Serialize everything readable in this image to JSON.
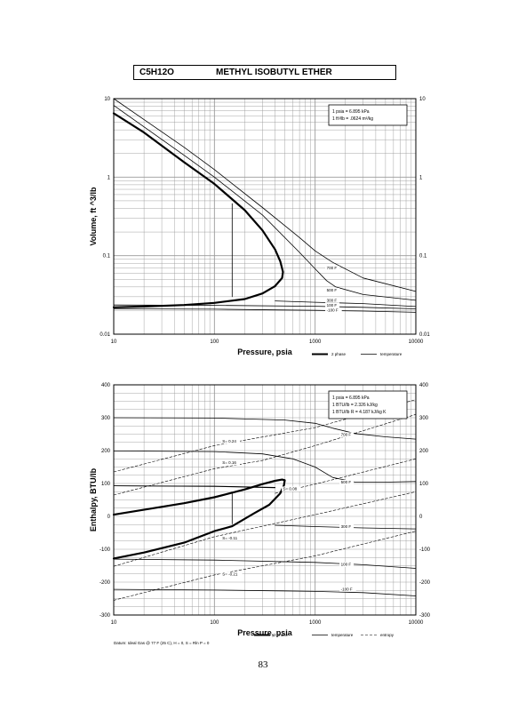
{
  "page": {
    "formula": "C5H12O",
    "compound": "METHYL ISOBUTYL ETHER",
    "page_number": "83"
  },
  "colors": {
    "ink": "#000000",
    "grid": "#9a9a9a"
  },
  "chart_data": [
    {
      "type": "line",
      "xscale": "log",
      "yscale": "log",
      "xlabel": "Pressure,  psia",
      "ylabel": "Volume, ft^3/lb",
      "xlim": [
        10,
        10000
      ],
      "ylim": [
        0.01,
        10
      ],
      "xticks": [
        "10",
        "100",
        "1000",
        "10000"
      ],
      "yticks": [
        "0.01",
        "0.1",
        "1",
        "10"
      ],
      "grid": true,
      "legend": {
        "position": "bottom-right",
        "entries": [
          "2 phase",
          "temperature"
        ]
      },
      "conversion_box": [
        "1 psia = 6.895 kPa",
        "1 ft^3/lb = .0624 m^3/kg"
      ],
      "curve_labels": [
        {
          "text": "700 F",
          "x": 1300,
          "y": 0.067
        },
        {
          "text": "500 F",
          "x": 1300,
          "y": 0.035
        },
        {
          "text": "300 F",
          "x": 1300,
          "y": 0.026
        },
        {
          "text": "100 F",
          "x": 1300,
          "y": 0.0225
        },
        {
          "text": "-100 F",
          "x": 1300,
          "y": 0.0195
        }
      ],
      "series": [
        {
          "role": "2-phase",
          "points": [
            [
              10,
              6.5
            ],
            [
              20,
              3.7
            ],
            [
              50,
              1.55
            ],
            [
              100,
              0.82
            ],
            [
              200,
              0.38
            ],
            [
              300,
              0.21
            ],
            [
              400,
              0.12
            ],
            [
              450,
              0.085
            ],
            [
              480,
              0.062
            ],
            [
              470,
              0.052
            ],
            [
              400,
              0.041
            ],
            [
              300,
              0.033
            ],
            [
              200,
              0.028
            ],
            [
              100,
              0.025
            ],
            [
              50,
              0.0235
            ],
            [
              20,
              0.0225
            ],
            [
              10,
              0.022
            ]
          ]
        },
        {
          "role": "isotherm",
          "points": [
            [
              150,
              0.46
            ],
            [
              150,
              0.03
            ]
          ]
        },
        {
          "role": "isotherm",
          "points": [
            [
              10,
              0.021
            ],
            [
              100,
              0.0208
            ],
            [
              1000,
              0.0201
            ],
            [
              3000,
              0.0197
            ],
            [
              10000,
              0.019
            ]
          ]
        },
        {
          "role": "isotherm",
          "points": [
            [
              10,
              0.0235
            ],
            [
              100,
              0.0233
            ],
            [
              1000,
              0.0227
            ],
            [
              3000,
              0.022
            ],
            [
              10000,
              0.021
            ]
          ]
        },
        {
          "role": "isotherm",
          "points": [
            [
              400,
              0.0265
            ],
            [
              1000,
              0.0255
            ],
            [
              3000,
              0.0245
            ],
            [
              10000,
              0.0225
            ]
          ]
        },
        {
          "role": "isotherm",
          "points": [
            [
              10,
              8.2
            ],
            [
              50,
              1.9
            ],
            [
              100,
              1.0
            ],
            [
              300,
              0.33
            ],
            [
              700,
              0.11
            ],
            [
              1000,
              0.068
            ],
            [
              1300,
              0.048
            ],
            [
              1600,
              0.04
            ],
            [
              3000,
              0.032
            ],
            [
              10000,
              0.027
            ]
          ]
        },
        {
          "role": "isotherm",
          "points": [
            [
              10,
              10
            ],
            [
              50,
              2.4
            ],
            [
              100,
              1.25
            ],
            [
              300,
              0.41
            ],
            [
              700,
              0.17
            ],
            [
              1000,
              0.115
            ],
            [
              1500,
              0.082
            ],
            [
              3000,
              0.052
            ],
            [
              10000,
              0.035
            ]
          ]
        }
      ]
    },
    {
      "type": "line",
      "xscale": "log",
      "yscale": "linear",
      "xlabel": "Pressure,  psia",
      "ylabel": "Enthalpy, BTU/lb",
      "xlim": [
        10,
        10000
      ],
      "ylim": [
        -300,
        400
      ],
      "xticks": [
        "10",
        "100",
        "1000",
        "10000"
      ],
      "yticks": [
        "-300",
        "-200",
        "-100",
        "0",
        "100",
        "200",
        "300",
        "400"
      ],
      "grid": true,
      "legend": {
        "position": "bottom-right",
        "entries": [
          "2 phase",
          "temperature",
          "entropy"
        ]
      },
      "conversion_box": [
        "1 psia = 6.895 kPa",
        "1 BTU/lb = 2.326 kJ/kg",
        "1 BTU/lb R = 4.187 kJ/kg K"
      ],
      "datum_note": "Datum: Ideal Gas @ 77 F (25 C),  H = 0,  S = Rln P = 0",
      "curve_labels": [
        {
          "text": "700 F",
          "x": 1800,
          "y": 245
        },
        {
          "text": "500 F",
          "x": 1800,
          "y": 100
        },
        {
          "text": "300 F",
          "x": 1800,
          "y": -35
        },
        {
          "text": "100 F",
          "x": 1800,
          "y": -150
        },
        {
          "text": "-100 F",
          "x": 1800,
          "y": -225
        },
        {
          "text": "S= 0.24",
          "x": 120,
          "y": 225
        },
        {
          "text": "S= 0.16",
          "x": 120,
          "y": 160
        },
        {
          "text": "S= 0.08",
          "x": 480,
          "y": 80
        },
        {
          "text": "S= -0.11",
          "x": 120,
          "y": -70
        },
        {
          "text": "S= -0.21",
          "x": 120,
          "y": -180
        }
      ],
      "series": [
        {
          "role": "2-phase",
          "points": [
            [
              10,
              5
            ],
            [
              50,
              40
            ],
            [
              100,
              58
            ],
            [
              200,
              82
            ],
            [
              300,
              98
            ],
            [
              400,
              108
            ],
            [
              470,
              112
            ],
            [
              500,
              110
            ],
            [
              490,
              95
            ],
            [
              450,
              70
            ],
            [
              350,
              35
            ],
            [
              250,
              10
            ],
            [
              150,
              -30
            ],
            [
              100,
              -45
            ],
            [
              50,
              -80
            ],
            [
              20,
              -110
            ],
            [
              10,
              -128
            ]
          ]
        },
        {
          "role": "isotherm",
          "points": [
            [
              150,
              69
            ],
            [
              150,
              -23
            ]
          ]
        },
        {
          "role": "isotherm",
          "points": [
            [
              10,
              300
            ],
            [
              100,
              299
            ],
            [
              500,
              293
            ],
            [
              1000,
              283
            ],
            [
              1500,
              268
            ],
            [
              2500,
              252
            ],
            [
              5000,
              242
            ],
            [
              10000,
              235
            ]
          ]
        },
        {
          "role": "isotherm",
          "points": [
            [
              10,
              199
            ],
            [
              100,
              197
            ],
            [
              300,
              190
            ],
            [
              600,
              175
            ],
            [
              1000,
              150
            ],
            [
              1500,
              118
            ],
            [
              2500,
              104
            ],
            [
              5000,
              104
            ],
            [
              10000,
              106
            ]
          ]
        },
        {
          "role": "isotherm",
          "points": [
            [
              10,
              93
            ],
            [
              100,
              92
            ],
            [
              400,
              88
            ]
          ]
        },
        {
          "role": "isotherm",
          "points": [
            [
              10,
              93
            ],
            [
              100,
              91
            ],
            [
              400,
              87
            ]
          ]
        },
        {
          "role": "isotherm",
          "points": [
            [
              400,
              -27
            ],
            [
              1000,
              -31
            ],
            [
              3000,
              -35
            ],
            [
              10000,
              -38
            ]
          ]
        },
        {
          "role": "isotherm",
          "points": [
            [
              10,
              -130
            ],
            [
              100,
              -133
            ],
            [
              1000,
              -140
            ],
            [
              3000,
              -147
            ],
            [
              10000,
              -158
            ]
          ]
        },
        {
          "role": "isotherm",
          "points": [
            [
              10,
              -222
            ],
            [
              100,
              -224
            ],
            [
              1000,
              -228
            ],
            [
              3000,
              -232
            ],
            [
              10000,
              -242
            ]
          ]
        },
        {
          "role": "isentrope",
          "points": [
            [
              10,
              135
            ],
            [
              100,
              215
            ],
            [
              1000,
              270
            ],
            [
              10000,
              355
            ]
          ]
        },
        {
          "role": "isentrope",
          "points": [
            [
              10,
              65
            ],
            [
              100,
              145
            ],
            [
              300,
              170
            ],
            [
              1000,
              215
            ],
            [
              10000,
              310
            ]
          ]
        },
        {
          "role": "isentrope",
          "points": [
            [
              400,
              70
            ],
            [
              1000,
              98
            ],
            [
              10000,
              175
            ]
          ]
        },
        {
          "role": "isentrope",
          "points": [
            [
              10,
              -152
            ],
            [
              100,
              -62
            ],
            [
              1000,
              5
            ],
            [
              10000,
              75
            ]
          ]
        },
        {
          "role": "isentrope",
          "points": [
            [
              10,
              -255
            ],
            [
              100,
              -178
            ],
            [
              1000,
              -120
            ],
            [
              10000,
              -45
            ]
          ]
        }
      ]
    }
  ]
}
